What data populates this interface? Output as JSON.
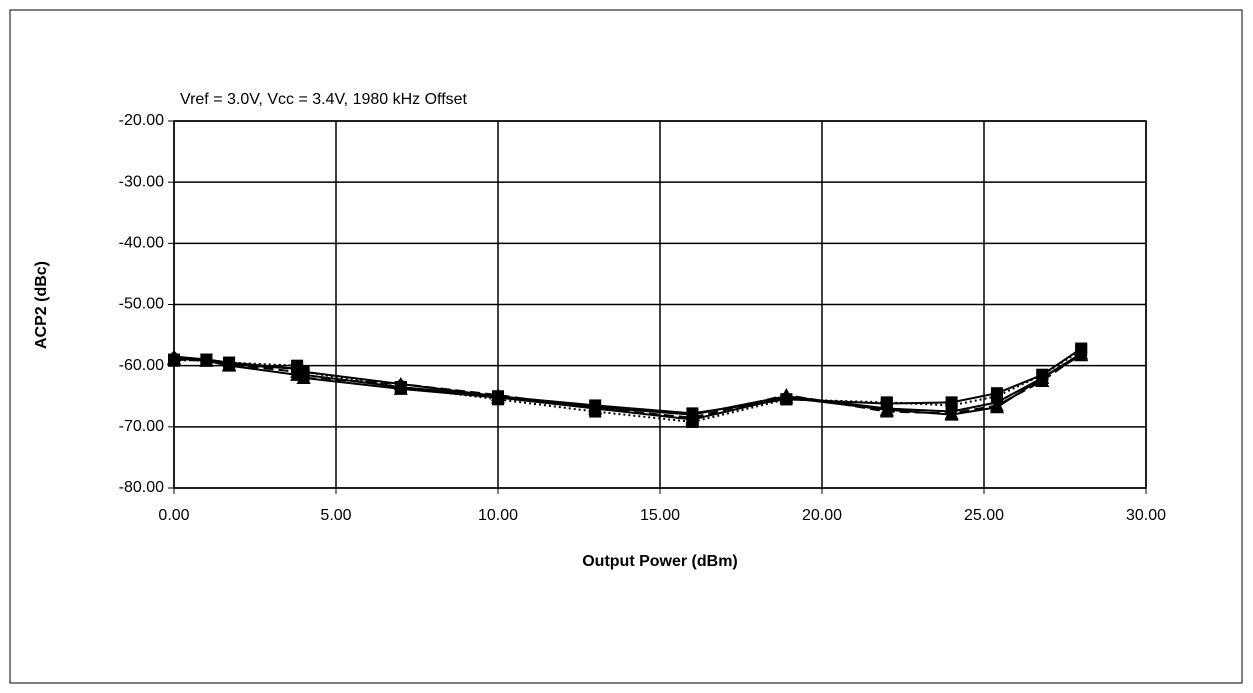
{
  "chart_data": {
    "type": "line",
    "title": "Vref = 3.0V, Vcc = 3.4V, 1980 kHz Offset",
    "x_label": "Output Power (dBm)",
    "y_label": "ACP2 (dBc)",
    "x": [
      0,
      1,
      1.7,
      3.8,
      4,
      7,
      10,
      13,
      16,
      18.9,
      22,
      24,
      25.4,
      26.8,
      28
    ],
    "series": [
      {
        "color": "#000000",
        "marker": "diamond",
        "dash": "solid",
        "values": [
          -58.5,
          -59,
          -59.8,
          -60.5,
          -61,
          -63,
          -65,
          -66.8,
          -68,
          -65,
          -67,
          -67.5,
          -66,
          -62,
          -58
        ]
      },
      {
        "color": "#000000",
        "marker": "square",
        "dash": "solid",
        "values": [
          -59,
          -59,
          -59.5,
          -60.5,
          -61.5,
          -63.5,
          -65,
          -66.5,
          -67.8,
          -65.5,
          -66.2,
          -66,
          -64.5,
          -61.5,
          -57.2
        ]
      },
      {
        "color": "#000000",
        "marker": "triangle",
        "dash": "dashed",
        "values": [
          -59,
          -59.2,
          -59.8,
          -61,
          -62,
          -63,
          -64.8,
          -67,
          -68.5,
          -64.8,
          -67.5,
          -67.8,
          -66.5,
          -62.5,
          -58
        ]
      },
      {
        "color": "#000000",
        "marker": "square",
        "dash": "dotted",
        "values": [
          -59.2,
          -59,
          -59.5,
          -60,
          -61,
          -63.5,
          -65.5,
          -67.5,
          -69.2,
          -65.5,
          -66,
          -66.5,
          -65,
          -61.5,
          -57.5
        ]
      },
      {
        "color": "#000000",
        "marker": "triangle",
        "dash": "solid",
        "values": [
          -58.8,
          -59.2,
          -60,
          -61.5,
          -62,
          -63.8,
          -65.2,
          -67,
          -68.8,
          -65.2,
          -67.2,
          -68,
          -66.8,
          -62,
          -58.3
        ]
      }
    ],
    "xlim": [
      0,
      30
    ],
    "ylim": [
      -80,
      -20
    ],
    "xticks": [
      {
        "value": 0,
        "label": "0.00"
      },
      {
        "value": 5,
        "label": "5.00"
      },
      {
        "value": 10,
        "label": "10.00"
      },
      {
        "value": 15,
        "label": "15.00"
      },
      {
        "value": 20,
        "label": "20.00"
      },
      {
        "value": 25,
        "label": "25.00"
      },
      {
        "value": 30,
        "label": "30.00"
      }
    ],
    "yticks": [
      {
        "value": -80,
        "label": "-80.00"
      },
      {
        "value": -70,
        "label": "-70.00"
      },
      {
        "value": -60,
        "label": "-60.00"
      },
      {
        "value": -50,
        "label": "-50.00"
      },
      {
        "value": -40,
        "label": "-40.00"
      },
      {
        "value": -30,
        "label": "-30.00"
      },
      {
        "value": -20,
        "label": "-20.00"
      }
    ],
    "grid": true
  }
}
